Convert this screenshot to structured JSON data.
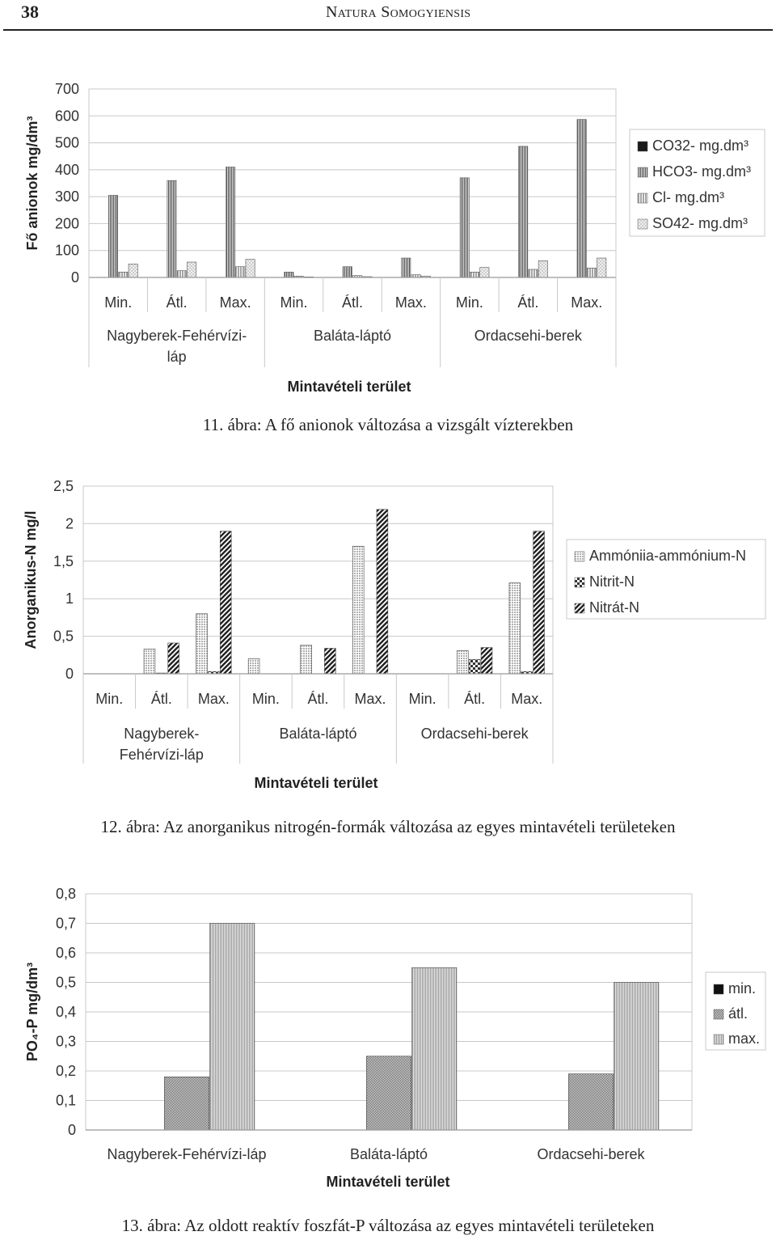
{
  "page": {
    "number": "38",
    "journal": "Natura Somogyiensis"
  },
  "captions": [
    "11. ábra: A fő anionok változása a vizsgált vízterekben",
    "12. ábra: Az anorganikus nitrogén-formák változása az egyes mintavételi területeken",
    "13. ábra: Az oldott reaktív foszfát-P változása az egyes mintavételi területeken"
  ],
  "chart_data": [
    {
      "type": "bar",
      "ylabel": "Fő anionok mg/dm³",
      "xlabel": "Mintavételi terület",
      "ylim": [
        0,
        700
      ],
      "yticks": [
        "0",
        "100",
        "200",
        "300",
        "400",
        "500",
        "600",
        "700"
      ],
      "categories": [
        "Min.",
        "Átl.",
        "Max.",
        "Min.",
        "Átl.",
        "Max.",
        "Min.",
        "Átl.",
        "Max."
      ],
      "groups": [
        {
          "label_lines": [
            "Nagyberek-Fehérvízi-",
            "láp"
          ]
        },
        {
          "label_lines": [
            "Baláta-láptó"
          ]
        },
        {
          "label_lines": [
            "Ordacsehi-berek"
          ]
        }
      ],
      "series": [
        {
          "name": "CO32-  mg.dm³",
          "values": [
            0,
            0,
            0,
            0,
            0,
            0,
            0,
            0,
            0
          ]
        },
        {
          "name": "HCO3- mg.dm³",
          "values": [
            305,
            360,
            410,
            20,
            40,
            72,
            370,
            487,
            587
          ]
        },
        {
          "name": "Cl- mg.dm³",
          "values": [
            20,
            25,
            40,
            5,
            7,
            10,
            20,
            30,
            35
          ]
        },
        {
          "name": "SO42- mg.dm³",
          "values": [
            50,
            57,
            67,
            2,
            3,
            5,
            37,
            62,
            72
          ]
        }
      ],
      "colors": [
        "#1a1a1a",
        "#555555",
        "#a5a5a5",
        "#cccccc"
      ],
      "legend": "right",
      "grid": true
    },
    {
      "type": "bar",
      "ylabel": "Anorganikus-N mg/l",
      "xlabel": "Mintavételi terület",
      "ylim": [
        0,
        2.5
      ],
      "yticks": [
        "0",
        "0,5",
        "1",
        "1,5",
        "2",
        "2,5"
      ],
      "categories": [
        "Min.",
        "Átl.",
        "Max.",
        "Min.",
        "Átl.",
        "Max.",
        "Min.",
        "Átl.",
        "Max."
      ],
      "groups": [
        {
          "label_lines": [
            "Nagyberek-",
            "Fehérvízi-láp"
          ]
        },
        {
          "label_lines": [
            "Baláta-láptó"
          ]
        },
        {
          "label_lines": [
            "Ordacsehi-berek"
          ]
        }
      ],
      "series": [
        {
          "name": "Ammóniia-ammónium-N",
          "values": [
            0,
            0.33,
            0.8,
            0.2,
            0.38,
            1.7,
            0,
            0.31,
            1.21
          ]
        },
        {
          "name": "Nitrit-N",
          "values": [
            0,
            0.01,
            0.03,
            0,
            0,
            0,
            0,
            0.19,
            0.03
          ]
        },
        {
          "name": "Nitrát-N",
          "values": [
            0,
            0.41,
            1.9,
            0,
            0.34,
            2.19,
            0,
            0.35,
            1.9
          ]
        }
      ],
      "colors": [
        "#b0b0b0",
        "#333333",
        "#222222"
      ],
      "legend": "right",
      "grid": true
    },
    {
      "type": "bar",
      "ylabel": "PO₄-P mg/dm³",
      "xlabel": "Mintavételi terület",
      "ylim": [
        0,
        0.8
      ],
      "yticks": [
        "0",
        "0,1",
        "0,2",
        "0,3",
        "0,4",
        "0,5",
        "0,6",
        "0,7",
        "0,8"
      ],
      "categories": [
        "Nagyberek-Fehérvízi-láp",
        "Baláta-láptó",
        "Ordacsehi-berek"
      ],
      "series": [
        {
          "name": "min.",
          "values": [
            0,
            0,
            0
          ]
        },
        {
          "name": "átl.",
          "values": [
            0.18,
            0.25,
            0.19
          ]
        },
        {
          "name": "max.",
          "values": [
            0.7,
            0.55,
            0.5
          ]
        }
      ],
      "colors": [
        "#111111",
        "#444444",
        "#999999"
      ],
      "legend": "right",
      "grid": true
    }
  ]
}
